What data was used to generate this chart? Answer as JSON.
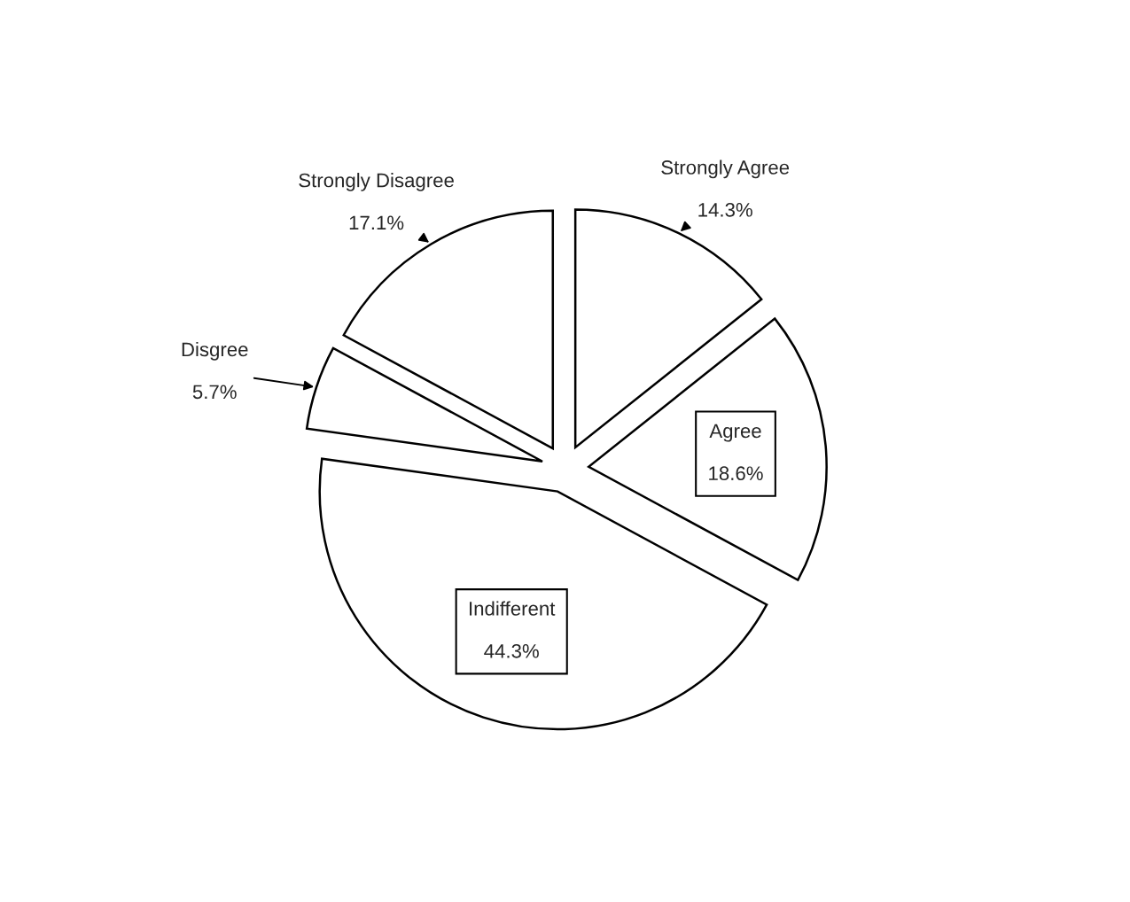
{
  "chart_data": {
    "type": "pie",
    "categories": [
      "Strongly Agree",
      "Agree",
      "Indifferent",
      "Disgree",
      "Strongly Disagree"
    ],
    "values": [
      14.3,
      18.6,
      44.3,
      5.7,
      17.1
    ],
    "colors": [
      "#ffffff",
      "#ffffff",
      "#ffffff",
      "#ffffff",
      "#ffffff"
    ],
    "value_labels": [
      "14.3%",
      "18.6%",
      "44.3%",
      "5.7%",
      "17.1%"
    ]
  }
}
